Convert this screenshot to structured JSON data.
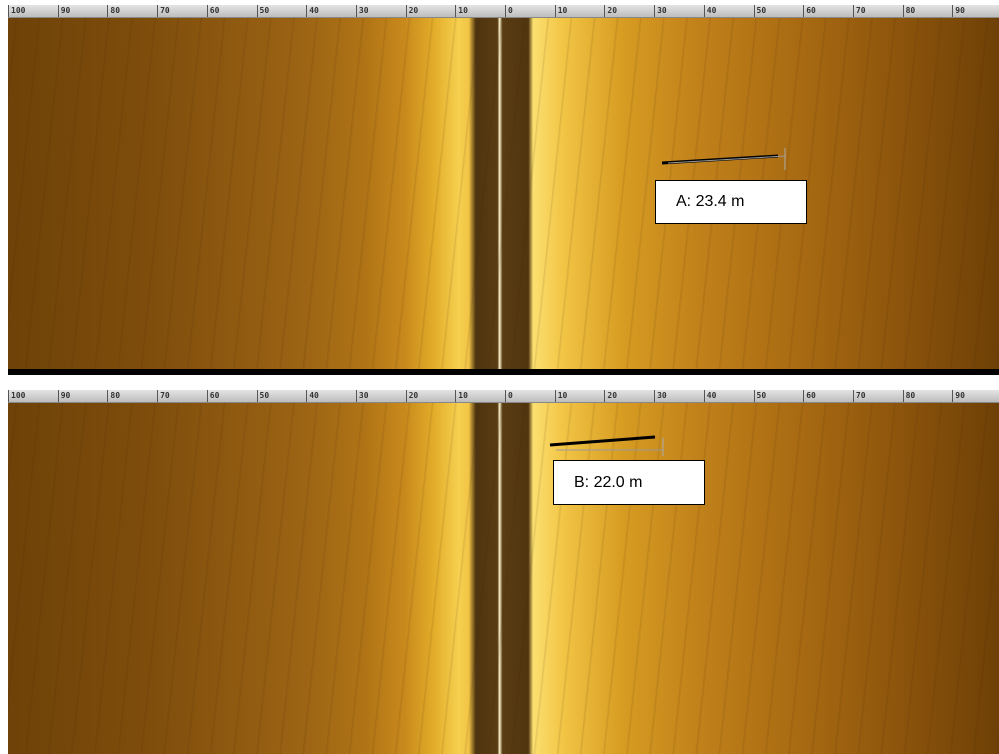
{
  "panels": [
    {
      "ruler": [
        "100",
        "90",
        "80",
        "70",
        "60",
        "50",
        "40",
        "30",
        "20",
        "10",
        "0",
        "10",
        "20",
        "30",
        "40",
        "50",
        "60",
        "70",
        "80",
        "90"
      ],
      "label": "A: 23.4 m"
    },
    {
      "ruler": [
        "100",
        "90",
        "80",
        "70",
        "60",
        "50",
        "40",
        "30",
        "20",
        "10",
        "0",
        "10",
        "20",
        "30",
        "40",
        "50",
        "60",
        "70",
        "80",
        "90"
      ],
      "label": "B: 22.0 m"
    }
  ]
}
